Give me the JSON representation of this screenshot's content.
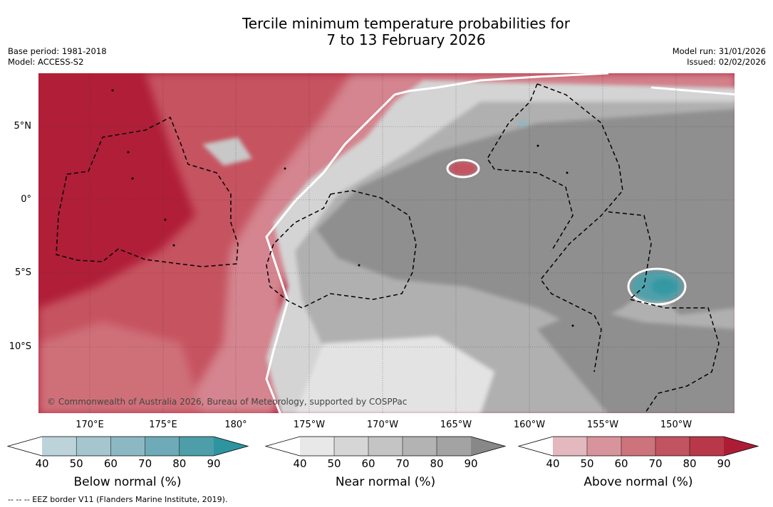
{
  "title": {
    "line1": "Tercile minimum temperature probabilities for",
    "line2": "7 to 13 February 2026"
  },
  "meta_left": {
    "base_period": "Base period: 1981-2018",
    "model": "Model: ACCESS-S2"
  },
  "meta_right": {
    "model_run": "Model run: 31/01/2026",
    "issued": "Issued: 02/02/2026"
  },
  "latitude_labels": [
    "5°N",
    "0°",
    "5°S",
    "10°S"
  ],
  "longitude_labels": [
    "170°E",
    "175°E",
    "180°",
    "175°W",
    "170°W",
    "165°W",
    "160°W",
    "155°W",
    "150°W"
  ],
  "copyright": "© Commonwealth of Australia 2026, Bureau of Meteorology, supported by COSPPac",
  "colorbars": [
    {
      "label": "Below normal (%)",
      "ticks": [
        "40",
        "50",
        "60",
        "70",
        "80",
        "90"
      ],
      "colors": [
        "#ffffff",
        "#bcd3da",
        "#a5c6ce",
        "#8cb8c3",
        "#6eaab7",
        "#4d9ea9",
        "#2d94a0"
      ]
    },
    {
      "label": "Near normal (%)",
      "ticks": [
        "40",
        "50",
        "60",
        "70",
        "80",
        "90"
      ],
      "colors": [
        "#ffffff",
        "#e8e8e8",
        "#d6d6d6",
        "#c4c4c4",
        "#b3b3b3",
        "#a3a3a3",
        "#888888"
      ]
    },
    {
      "label": "Above normal (%)",
      "ticks": [
        "40",
        "50",
        "60",
        "70",
        "80",
        "90"
      ],
      "colors": [
        "#ffffff",
        "#e3b8be",
        "#d8949c",
        "#cc737c",
        "#c25461",
        "#b8384a",
        "#ad1c35"
      ]
    }
  ],
  "footer": "-- -- -- EEZ border V11 (Flanders Marine Institute, 2019).",
  "legend_categories": {
    "below_color": "#2d94a0",
    "near_color": "#888888",
    "above_color": "#ad1c35"
  }
}
